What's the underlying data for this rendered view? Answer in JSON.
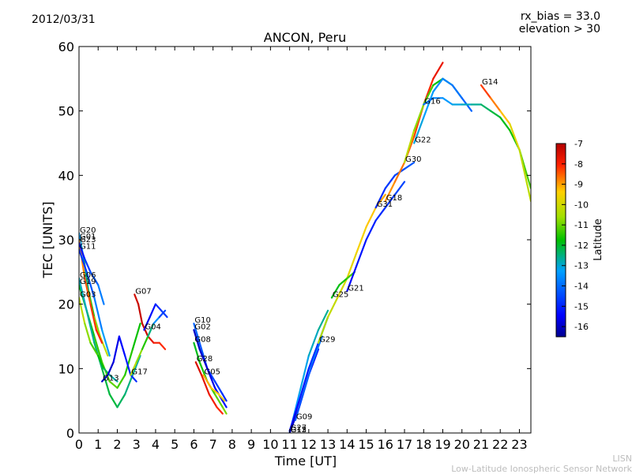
{
  "header": {
    "date": "2012/03/31",
    "rx_bias": "rx_bias = 33.0",
    "elevation": "elevation > 30"
  },
  "footer": {
    "line1": "LISN",
    "line2": "Low-Latitude Ionospheric Sensor Network"
  },
  "chart_data": {
    "type": "line",
    "title": "ANCON, Peru",
    "xlabel": "Time [UT]",
    "ylabel": "TEC [UNITS]",
    "xlim": [
      0,
      23.6
    ],
    "ylim": [
      0,
      60
    ],
    "xticks": [
      0,
      1,
      2,
      3,
      4,
      5,
      6,
      7,
      8,
      9,
      10,
      11,
      12,
      13,
      14,
      15,
      16,
      17,
      18,
      19,
      20,
      21,
      22,
      23
    ],
    "yticks": [
      0,
      10,
      20,
      30,
      40,
      50,
      60
    ],
    "colorbar": {
      "label": "Latitude",
      "min": -16.5,
      "max": -7,
      "ticks": [
        -7,
        -8,
        -9,
        -10,
        -11,
        -12,
        -13,
        -14,
        -15,
        -16
      ]
    },
    "colors": {
      "low": "#00008f",
      "high": "#b30000"
    },
    "series": [
      {
        "name": "G20",
        "x": [
          0,
          0.25,
          0.5,
          0.8,
          1.1,
          1.5
        ],
        "y": [
          31,
          27,
          22,
          18,
          15,
          12
        ],
        "lat": [
          -13.5,
          -13,
          -12,
          -11,
          -10.5,
          -10
        ]
      },
      {
        "name": "G01",
        "x": [
          0,
          0.3,
          0.6,
          0.9,
          1.2
        ],
        "y": [
          30,
          24,
          20,
          16,
          14
        ],
        "lat": [
          -9,
          -8.6,
          -8.3,
          -8.1,
          -8
        ]
      },
      {
        "name": "G23",
        "x": [
          0,
          0.3,
          0.6,
          1.0,
          1.3
        ],
        "y": [
          29.5,
          27,
          25,
          23,
          20
        ],
        "lat": [
          -15.5,
          -15,
          -14.5,
          -14,
          -13.5
        ]
      },
      {
        "name": "G11",
        "x": [
          0,
          0.4,
          0.8,
          1.2,
          1.6
        ],
        "y": [
          28.5,
          25,
          21,
          16,
          12
        ],
        "lat": [
          -15,
          -14.5,
          -14,
          -13.5,
          -13
        ]
      },
      {
        "name": "G19",
        "x": [
          0,
          0.4,
          0.8,
          1.2,
          1.6,
          2.0,
          2.4,
          2.8,
          3.2
        ],
        "y": [
          23,
          19,
          15,
          11,
          8,
          7,
          9,
          13,
          17
        ],
        "lat": [
          -12,
          -11.8,
          -11.5,
          -11.3,
          -11,
          -11.2,
          -11.4,
          -11.6,
          -11.8
        ]
      },
      {
        "name": "G06",
        "x": [
          0,
          0.4,
          0.8,
          1.2,
          1.6,
          2.0,
          2.4,
          2.8,
          3.2
        ],
        "y": [
          24,
          19,
          14,
          10,
          6,
          4,
          6,
          9,
          12
        ],
        "lat": [
          -13,
          -12.8,
          -12.5,
          -12.3,
          -12,
          -12.2,
          -12.4,
          -12.6,
          -12.8
        ]
      },
      {
        "name": "G03",
        "x": [
          0,
          0.3,
          0.6,
          1.0,
          1.3,
          1.6,
          2.0
        ],
        "y": [
          21,
          17,
          14,
          12,
          10,
          9,
          8
        ],
        "lat": [
          -10,
          -10.5,
          -11,
          -11.5,
          -12,
          -12.5,
          -13
        ]
      },
      {
        "name": "G13",
        "x": [
          1.2,
          1.5,
          1.8,
          2.1,
          2.4,
          2.7,
          3.0
        ],
        "y": [
          8,
          9,
          11,
          15,
          12,
          9,
          8
        ],
        "lat": [
          -16,
          -16,
          -15.8,
          -15.5,
          -15.2,
          -15,
          -14.8
        ]
      },
      {
        "name": "G07",
        "x": [
          2.9,
          3.1,
          3.3,
          3.6,
          3.9,
          4.2,
          4.5
        ],
        "y": [
          21.5,
          20,
          17,
          15,
          14,
          14,
          13
        ],
        "lat": [
          -7.5,
          -7.3,
          -7.2,
          -7.5,
          -7.8,
          -8,
          -8.2
        ]
      },
      {
        "name": "G17",
        "x": [
          2.7,
          3.0,
          3.3,
          3.6,
          3.9,
          4.2,
          4.5
        ],
        "y": [
          9,
          11,
          13,
          15,
          17,
          18,
          19
        ],
        "lat": [
          -10,
          -10.5,
          -11,
          -12,
          -13,
          -14,
          -15
        ]
      },
      {
        "name": "G04",
        "x": [
          3.4,
          3.7,
          4.0,
          4.3,
          4.6
        ],
        "y": [
          16,
          18,
          20,
          19,
          18
        ],
        "lat": [
          -15.8,
          -15.5,
          -15,
          -14.8,
          -14.5
        ]
      },
      {
        "name": "G10",
        "x": [
          6.0,
          6.3,
          6.7,
          7.1,
          7.5,
          7.7
        ],
        "y": [
          17,
          14,
          10,
          8,
          6,
          5
        ],
        "lat": [
          -14,
          -14.2,
          -14.4,
          -14.6,
          -14.8,
          -15
        ]
      },
      {
        "name": "G02",
        "x": [
          6.0,
          6.3,
          6.7,
          7.1,
          7.5,
          7.7
        ],
        "y": [
          16,
          13,
          10,
          7,
          5,
          4
        ],
        "lat": [
          -16,
          -16,
          -15.8,
          -15.5,
          -15.3,
          -15
        ]
      },
      {
        "name": "G08",
        "x": [
          6.0,
          6.3,
          6.7,
          7.1,
          7.5,
          7.7
        ],
        "y": [
          14,
          11,
          8,
          6,
          4,
          3
        ],
        "lat": [
          -12,
          -11.8,
          -11.5,
          -11.2,
          -11,
          -10.8
        ]
      },
      {
        "name": "G28",
        "x": [
          6.1,
          6.4,
          6.8,
          7.2,
          7.5
        ],
        "y": [
          11,
          9,
          6,
          4,
          3
        ],
        "lat": [
          -7.5,
          -7.6,
          -7.8,
          -8,
          -8.2
        ]
      },
      {
        "name": "G05",
        "x": [
          6.5,
          6.9,
          7.3,
          7.6
        ],
        "y": [
          9,
          7,
          6,
          5
        ],
        "lat": [
          -9,
          -9.2,
          -9.4,
          -9.6
        ]
      },
      {
        "name": "G12",
        "x": [
          11.0,
          11.5,
          12.0,
          12.5,
          13.0
        ],
        "y": [
          0,
          6,
          12,
          16,
          19
        ],
        "lat": [
          -13.5,
          -13.3,
          -13,
          -12.8,
          -12.5
        ]
      },
      {
        "name": "G27",
        "x": [
          11.0,
          11.5,
          12.0,
          12.5,
          13.0
        ],
        "y": [
          0.3,
          5,
          10,
          14,
          18
        ],
        "lat": [
          -15.5,
          -15.2,
          -15,
          -14.8,
          -14.5
        ]
      },
      {
        "name": "G15",
        "x": [
          11.0,
          11.5,
          12.0,
          12.5
        ],
        "y": [
          0,
          4,
          9,
          13
        ],
        "lat": [
          -16,
          -15.8,
          -15.6,
          -15.4
        ]
      },
      {
        "name": "G09",
        "x": [
          11.3,
          11.7,
          12.2,
          12.7
        ],
        "y": [
          2,
          6,
          11,
          15
        ],
        "lat": [
          -14.5,
          -14.3,
          -14,
          -13.8
        ]
      },
      {
        "name": "G29",
        "x": [
          12.5,
          13.0,
          13.5,
          14.0,
          14.5,
          15.0,
          15.5,
          16.0
        ],
        "y": [
          14,
          18,
          21,
          24,
          28,
          32,
          35,
          37
        ],
        "lat": [
          -10.5,
          -10.3,
          -10,
          -9.8,
          -9.6,
          -9.4,
          -9.2,
          -9
        ]
      },
      {
        "name": "G25",
        "x": [
          13.2,
          13.6,
          14.0,
          14.4
        ],
        "y": [
          21,
          23,
          24,
          25
        ],
        "lat": [
          -12,
          -11.8,
          -11.5,
          -11.2
        ]
      },
      {
        "name": "G21",
        "x": [
          14.0,
          14.5,
          15.0,
          15.5,
          16.0,
          16.5,
          17.0
        ],
        "y": [
          22,
          26,
          30,
          33,
          35,
          37,
          39
        ],
        "lat": [
          -15.5,
          -15.3,
          -15.1,
          -15,
          -14.8,
          -14.6,
          -14.5
        ]
      },
      {
        "name": "G31",
        "x": [
          15.5,
          16.0,
          16.5,
          17.0,
          17.5
        ],
        "y": [
          35,
          38,
          40,
          41,
          42
        ],
        "lat": [
          -15,
          -14.8,
          -14.6,
          -14.4,
          -14.2
        ]
      },
      {
        "name": "G18",
        "x": [
          16.0,
          16.5,
          17.0,
          17.5,
          18.0,
          18.5,
          19.0
        ],
        "y": [
          36,
          39,
          42,
          46,
          51,
          55,
          57.5
        ],
        "lat": [
          -9,
          -8.8,
          -8.6,
          -8.4,
          -8.2,
          -8,
          -7.5
        ]
      },
      {
        "name": "G30",
        "x": [
          17.0,
          17.5,
          18.0,
          18.5,
          19.0,
          19.5,
          20.0
        ],
        "y": [
          42,
          47,
          51,
          54,
          55,
          54,
          52
        ],
        "lat": [
          -10,
          -10.5,
          -11,
          -11.5,
          -12,
          -12.5,
          -13
        ]
      },
      {
        "name": "G22",
        "x": [
          17.5,
          18.0,
          18.5,
          19.0,
          19.5,
          20.0,
          20.5
        ],
        "y": [
          45,
          49,
          53,
          55,
          54,
          52,
          50
        ],
        "lat": [
          -13,
          -13.2,
          -13.4,
          -13.6,
          -13.8,
          -14,
          -14.2
        ]
      },
      {
        "name": "G16",
        "x": [
          18.0,
          18.5,
          19.0,
          19.5,
          20.0,
          20.5,
          21.0,
          21.5,
          22.0,
          22.5,
          23.0,
          23.6
        ],
        "y": [
          51,
          52,
          52,
          51,
          51,
          51,
          51,
          50,
          49,
          47,
          44,
          38
        ],
        "lat": [
          -14,
          -13.8,
          -13.5,
          -13.2,
          -13,
          -12.8,
          -12.5,
          -12.2,
          -12,
          -11.8,
          -11.5,
          -11
        ]
      },
      {
        "name": "G14",
        "x": [
          21.0,
          21.5,
          22.0,
          22.5,
          23.0,
          23.6
        ],
        "y": [
          54,
          52,
          50,
          48,
          44,
          36
        ],
        "lat": [
          -8,
          -8.5,
          -9,
          -9.5,
          -10,
          -10.5
        ]
      }
    ]
  }
}
